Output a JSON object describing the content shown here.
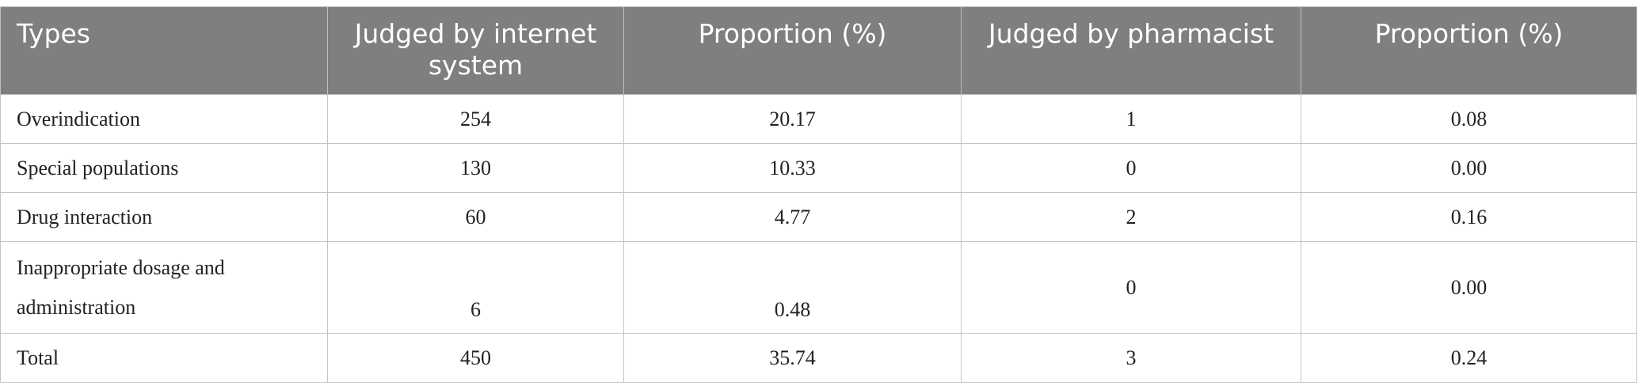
{
  "table": {
    "header": [
      "Types",
      "Judged by internet system",
      "Proportion (%)",
      "Judged by pharmacist",
      "Proportion (%)"
    ],
    "rows": [
      [
        "Overindication",
        "254",
        "20.17",
        "1",
        "0.08"
      ],
      [
        "Special populations",
        "130",
        "10.33",
        "0",
        "0.00"
      ],
      [
        "Drug interaction",
        "60",
        "4.77",
        "2",
        "0.16"
      ],
      [
        "Inappropriate dosage and administration",
        "6",
        "0.48",
        "0",
        "0.00"
      ],
      [
        "Total",
        "450",
        "35.74",
        "3",
        "0.24"
      ]
    ]
  }
}
